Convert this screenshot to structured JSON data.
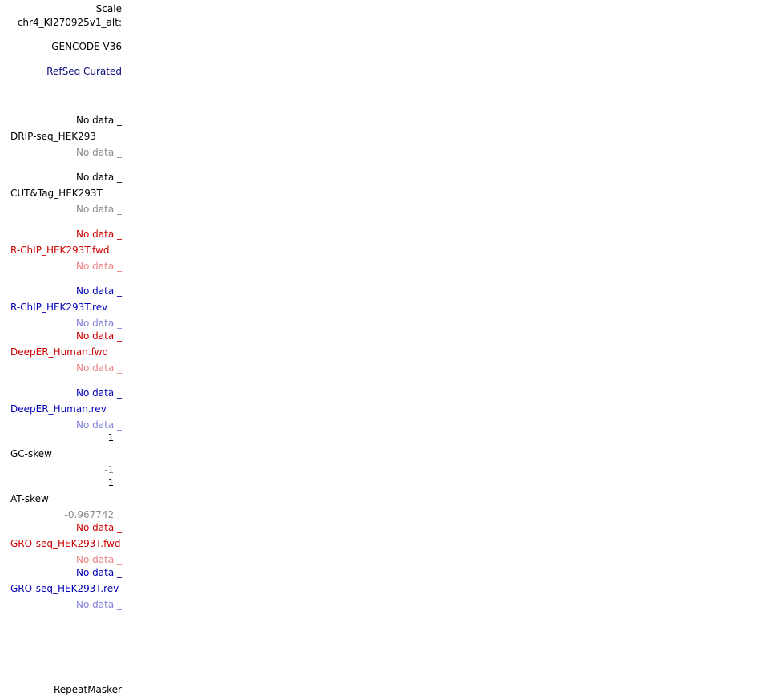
{
  "colors": {
    "black": "#000000",
    "gray": "#8a8a8a",
    "red": "#cc0000",
    "light_red": "#ea8080",
    "blue": "#0000b4",
    "light_blue": "#8080d9"
  },
  "header": {
    "scale": "Scale",
    "chrom": "chr4_KI270925v1_alt:"
  },
  "tracks": {
    "gencode": "GENCODE V36",
    "refseq": "RefSeq Curated",
    "drip": {
      "top": "No data _",
      "name": "DRIP-seq_HEK293",
      "bottom": "No data _"
    },
    "cuttag": {
      "top": "No data _",
      "name": "CUT&Tag_HEK293T",
      "bottom": "No data _"
    },
    "rchip_fwd": {
      "top": "No data _",
      "name": "R-ChIP_HEK293T.fwd",
      "bottom": "No data _"
    },
    "rchip_rev": {
      "top": "No data _",
      "name": "R-ChIP_HEK293T.rev",
      "bottom": "No data _"
    },
    "deeper_fwd": {
      "top": "No data _",
      "name": "DeepER_Human.fwd",
      "bottom": "No data _"
    },
    "deeper_rev": {
      "top": "No data _",
      "name": "DeepER_Human.rev",
      "bottom": "No data _"
    },
    "gc_skew": {
      "top": "1 _",
      "name": "GC-skew",
      "bottom": "-1 _"
    },
    "at_skew": {
      "top": "1 _",
      "name": "AT-skew",
      "bottom": "-0.967742 _"
    },
    "gro_fwd": {
      "top": "No data _",
      "name": "GRO-seq_HEK293T.fwd",
      "bottom": "No data _"
    },
    "gro_rev": {
      "top": "No data _",
      "name": "GRO-seq_HEK293T.rev",
      "bottom": "No data _"
    },
    "repeatmasker": "RepeatMasker"
  }
}
